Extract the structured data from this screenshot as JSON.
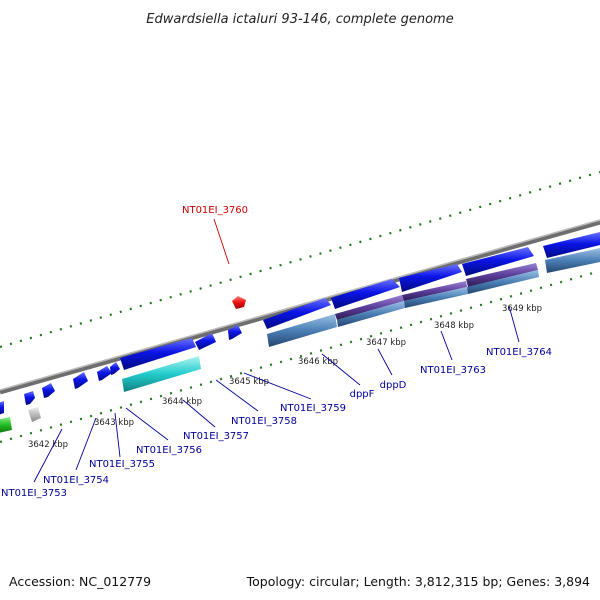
{
  "header": {
    "title": "Edwardsiella ictaluri 93-146, complete genome"
  },
  "footer": {
    "accession": "Accession: NC_012779",
    "topology": "Topology: circular; Length: 3,812,315 bp; Genes: 3,894"
  },
  "colors": {
    "backbone": "#8c8c8c",
    "gene_forward": "#0a14e6",
    "gene_highlight": "#ee1111",
    "gene_cyan": "#22cccc",
    "gene_green": "#22bb22",
    "gene_grey": "#bbbbbb",
    "feature_steel": "#4a7fb5",
    "feature_purple": "#5a3d99",
    "tick": "#227722",
    "label_blue": "#000099",
    "label_red": "#cc0000"
  },
  "map": {
    "kbp_labels": [
      "3642 kbp",
      "3643 kbp",
      "3644 kbp",
      "3645 kbp",
      "3646 kbp",
      "3647 kbp",
      "3648 kbp",
      "3649 kbp"
    ],
    "gene_labels": [
      {
        "text": "NT01EI_3753",
        "icon": "gene-label"
      },
      {
        "text": "NT01EI_3754",
        "icon": "gene-label"
      },
      {
        "text": "NT01EI_3755",
        "icon": "gene-label"
      },
      {
        "text": "NT01EI_3756",
        "icon": "gene-label"
      },
      {
        "text": "NT01EI_3757",
        "icon": "gene-label"
      },
      {
        "text": "NT01EI_3758",
        "icon": "gene-label"
      },
      {
        "text": "NT01EI_3759",
        "icon": "gene-label"
      },
      {
        "text": "dppF",
        "icon": "gene-label"
      },
      {
        "text": "dppD",
        "icon": "gene-label"
      },
      {
        "text": "NT01EI_3763",
        "icon": "gene-label"
      },
      {
        "text": "NT01EI_3764",
        "icon": "gene-label"
      },
      {
        "text": "NT01EI_3760",
        "icon": "gene-label-highlight"
      }
    ]
  }
}
